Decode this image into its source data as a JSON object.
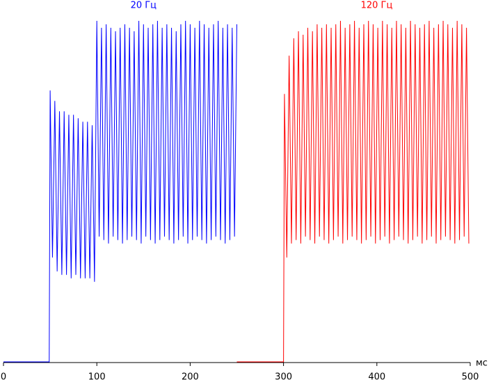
{
  "chart_data": {
    "type": "line",
    "xlabel": "мс",
    "xlim": [
      0,
      500
    ],
    "xticks": [
      0,
      100,
      200,
      300,
      400,
      500
    ],
    "ylim": [
      0,
      100
    ],
    "series": [
      {
        "name": "20 Гц",
        "color": "#0000ff",
        "x": [
          0,
          49,
          50,
          52.5,
          55,
          57.5,
          60,
          62.5,
          65,
          67.5,
          70,
          72.5,
          75,
          77.5,
          80,
          82.5,
          85,
          87.5,
          90,
          92.5,
          95,
          97.5,
          100,
          102.5,
          105,
          107.5,
          110,
          112.5,
          115,
          117.5,
          120,
          122.5,
          125,
          127.5,
          130,
          132.5,
          135,
          137.5,
          140,
          142.5,
          145,
          147.5,
          150,
          152.5,
          155,
          157.5,
          160,
          162.5,
          165,
          167.5,
          170,
          172.5,
          175,
          177.5,
          180,
          182.5,
          185,
          187.5,
          190,
          192.5,
          195,
          197.5,
          200,
          202.5,
          205,
          207.5,
          210,
          212.5,
          215,
          217.5,
          220,
          222.5,
          225,
          227.5,
          230,
          232.5,
          235,
          237.5,
          240,
          242.5,
          245,
          247.5,
          250
        ],
        "values": [
          0,
          0,
          78,
          30,
          75,
          26,
          72,
          25,
          72,
          25,
          71,
          24,
          71,
          25,
          70,
          24,
          69,
          24,
          69,
          24,
          68,
          23,
          98,
          36,
          96,
          35,
          97,
          34,
          96,
          36,
          95,
          35,
          96,
          34,
          97,
          35,
          96,
          36,
          95,
          35,
          98,
          34,
          97,
          36,
          96,
          35,
          97,
          34,
          98,
          35,
          96,
          36,
          97,
          35,
          96,
          34,
          95,
          35,
          97,
          36,
          98,
          34,
          97,
          35,
          96,
          36,
          98,
          35,
          97,
          34,
          96,
          35,
          97,
          36,
          98,
          35,
          96,
          34,
          97,
          35,
          96,
          36,
          97
        ]
      },
      {
        "name": "120 Гц",
        "color": "#ff0000",
        "x": [
          250,
          300,
          301,
          303.5,
          306,
          308.5,
          311,
          313.5,
          316,
          318.5,
          321,
          323.5,
          326,
          328.5,
          331,
          333.5,
          336,
          338.5,
          341,
          343.5,
          346,
          348.5,
          351,
          353.5,
          356,
          358.5,
          361,
          363.5,
          366,
          368.5,
          371,
          373.5,
          376,
          378.5,
          381,
          383.5,
          386,
          388.5,
          391,
          393.5,
          396,
          398.5,
          401,
          403.5,
          406,
          408.5,
          411,
          413.5,
          416,
          418.5,
          421,
          423.5,
          426,
          428.5,
          431,
          433.5,
          436,
          438.5,
          441,
          443.5,
          446,
          448.5,
          451,
          453.5,
          456,
          458.5,
          461,
          463.5,
          466,
          468.5,
          471,
          473.5,
          476,
          478.5,
          481,
          483.5,
          486,
          488.5,
          491,
          493.5,
          496,
          498.5
        ],
        "values": [
          0,
          0,
          77,
          30,
          88,
          34,
          93,
          35,
          95,
          34,
          94,
          36,
          96,
          35,
          95,
          34,
          97,
          36,
          96,
          35,
          97,
          34,
          96,
          35,
          97,
          36,
          98,
          34,
          96,
          35,
          97,
          36,
          98,
          35,
          96,
          34,
          97,
          35,
          98,
          36,
          97,
          34,
          96,
          35,
          98,
          36,
          97,
          34,
          96,
          35,
          98,
          36,
          97,
          35,
          96,
          34,
          98,
          35,
          97,
          36,
          96,
          34,
          97,
          35,
          98,
          36,
          96,
          34,
          97,
          35,
          98,
          36,
          97,
          35,
          96,
          34,
          98,
          35,
          97,
          36,
          96,
          34
        ]
      }
    ]
  }
}
